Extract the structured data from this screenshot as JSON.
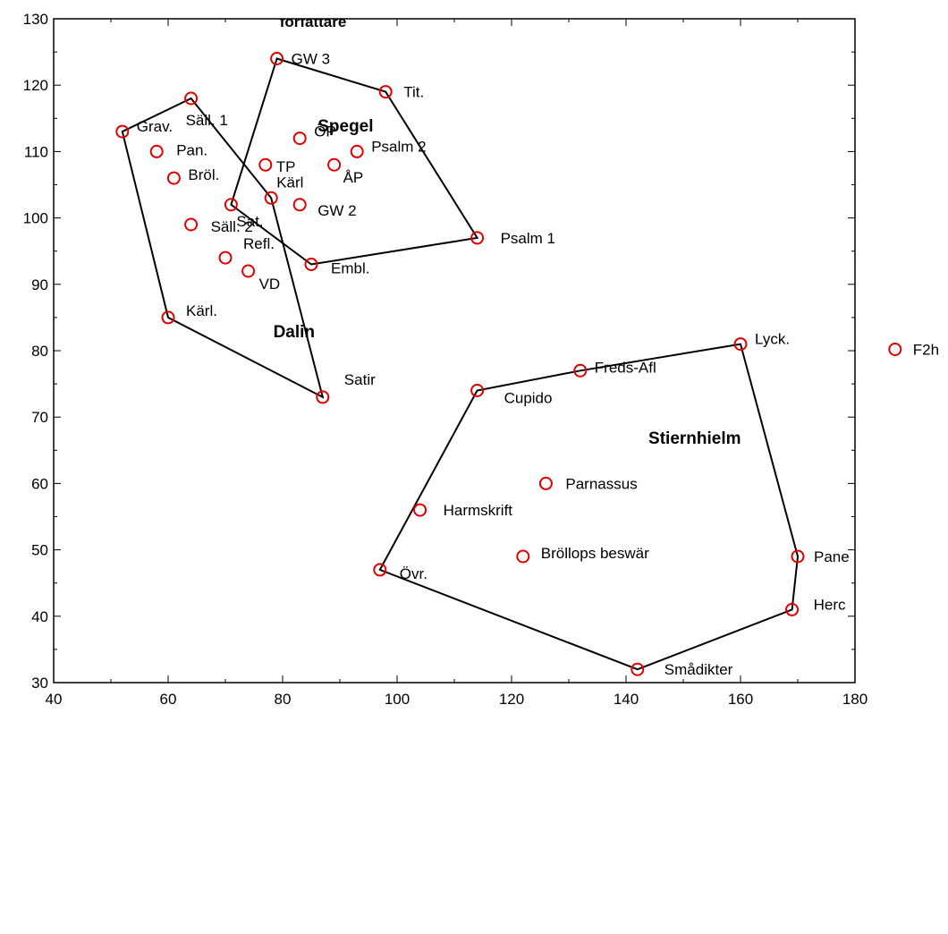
{
  "chart_data": {
    "type": "scatter",
    "title": "författare",
    "xlim": [
      40,
      180
    ],
    "ylim": [
      30,
      130
    ],
    "x_ticks": [
      40,
      60,
      80,
      100,
      120,
      140,
      160,
      180
    ],
    "y_ticks": [
      30,
      40,
      50,
      60,
      70,
      80,
      90,
      100,
      110,
      120,
      130
    ],
    "marker_color": "#e00000",
    "line_color": "#000000",
    "points": [
      {
        "label": "GW 3",
        "x": 79,
        "y": 124
      },
      {
        "label": "Tit.",
        "x": 98,
        "y": 119
      },
      {
        "label": "Säll. 1",
        "x": 64,
        "y": 118
      },
      {
        "label": "Grav.",
        "x": 52,
        "y": 113
      },
      {
        "label": "ÖP",
        "x": 83,
        "y": 112
      },
      {
        "label": "Pan.",
        "x": 58,
        "y": 110
      },
      {
        "label": "Psalm 2",
        "x": 93,
        "y": 110
      },
      {
        "label": "TP",
        "x": 77,
        "y": 108
      },
      {
        "label": "ÅP",
        "x": 89,
        "y": 108
      },
      {
        "label": "Bröl.",
        "x": 61,
        "y": 106
      },
      {
        "label": "Kärl",
        "x": 78,
        "y": 103
      },
      {
        "label": "Sat.",
        "x": 71,
        "y": 102
      },
      {
        "label": "GW 2",
        "x": 83,
        "y": 102
      },
      {
        "label": "Säll. 2",
        "x": 64,
        "y": 99
      },
      {
        "label": "Psalm 1",
        "x": 114,
        "y": 97
      },
      {
        "label": "Refl.",
        "x": 70,
        "y": 94
      },
      {
        "label": "Embl.",
        "x": 85,
        "y": 93
      },
      {
        "label": "VD",
        "x": 74,
        "y": 92
      },
      {
        "label": "Kärl.",
        "x": 60,
        "y": 85
      },
      {
        "label": "Satir",
        "x": 87,
        "y": 73
      },
      {
        "label": "Lyck.",
        "x": 160,
        "y": 81
      },
      {
        "label": "F2h",
        "x": 187,
        "y": 80.2
      },
      {
        "label": "Freds-Afl",
        "x": 132,
        "y": 77
      },
      {
        "label": "Cupido",
        "x": 114,
        "y": 74
      },
      {
        "label": "Parnassus",
        "x": 126,
        "y": 60
      },
      {
        "label": "Harmskrift",
        "x": 104,
        "y": 56
      },
      {
        "label": "Bröllops beswär",
        "x": 122,
        "y": 49
      },
      {
        "label": "Pane",
        "x": 170,
        "y": 49
      },
      {
        "label": "Övr.",
        "x": 97,
        "y": 47
      },
      {
        "label": "Herc",
        "x": 169,
        "y": 41
      },
      {
        "label": "Smådikter",
        "x": 142,
        "y": 32
      }
    ],
    "groups": [
      {
        "name": "Spegel",
        "label_pos": [
          91,
          113
        ],
        "hull": [
          "GW 3",
          "Tit.",
          "Psalm 1",
          "Embl.",
          "Sat."
        ]
      },
      {
        "name": "Dalin",
        "label_pos": [
          82,
          82
        ],
        "hull": [
          "Säll. 1",
          "Grav.",
          "Kärl.",
          "Satir",
          "Kärl"
        ]
      },
      {
        "name": "Stiernhielm",
        "label_pos": [
          152,
          66
        ],
        "hull": [
          "Lyck.",
          "Pane",
          "Herc",
          "Smådikter",
          "Övr.",
          "Cupido",
          "Freds-Afl"
        ]
      }
    ]
  }
}
